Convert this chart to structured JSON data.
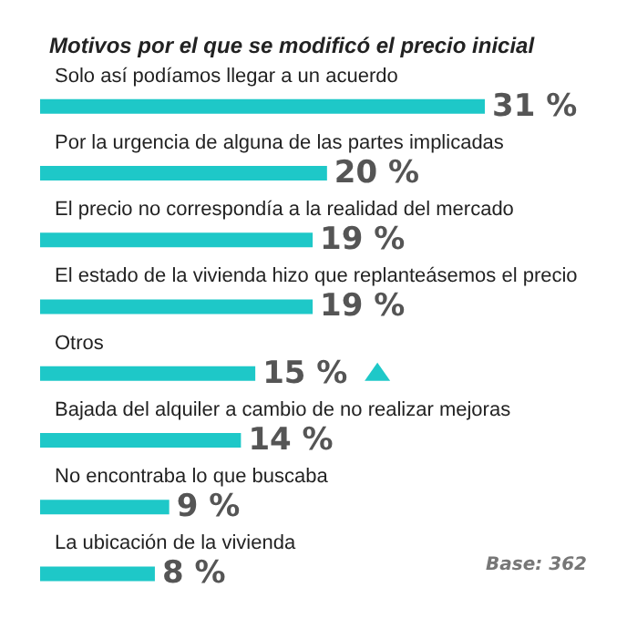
{
  "chart_data": {
    "type": "bar",
    "orientation": "horizontal",
    "title": "Motivos por el que se modificó el precio inicial",
    "categories": [
      "Solo así podíamos llegar a un acuerdo",
      "Por la urgencia de alguna de las partes implicadas",
      "El precio no correspondía a la realidad del mercado",
      "El estado de la vivienda hizo que replanteásemos el precio",
      "Otros",
      "Bajada del alquiler a cambio de no realizar mejoras",
      "No encontraba lo que buscaba",
      "La ubicación de la vivienda"
    ],
    "values": [
      31,
      20,
      19,
      19,
      15,
      14,
      9,
      8
    ],
    "value_labels": [
      "31 %",
      "20 %",
      "19 %",
      "19 %",
      "15 %",
      "14 %",
      "9 %",
      "8 %"
    ],
    "color": "#1ec8c8",
    "annotations": [
      "Base: 362"
    ]
  }
}
